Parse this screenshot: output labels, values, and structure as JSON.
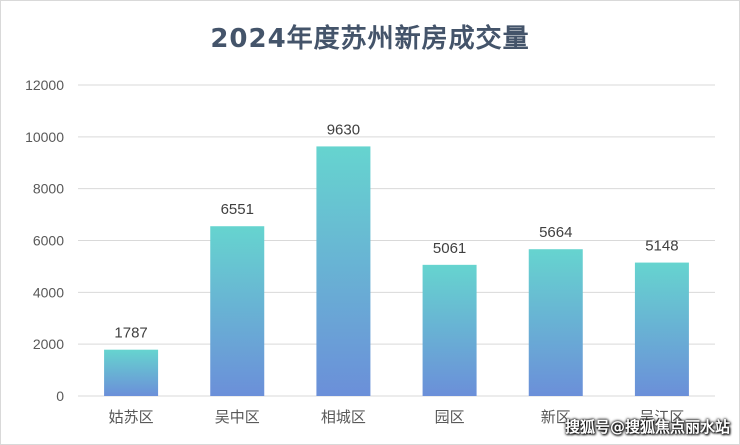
{
  "colors": {
    "bar_top": "#66d4cf",
    "bar_bottom": "#6b8fd9",
    "gridline": "#d9d9d9",
    "title": "#44546a"
  },
  "watermark": "搜狐号@搜狐焦点丽水站",
  "chart_data": {
    "type": "bar",
    "title": "2024年度苏州新房成交量",
    "xlabel": "",
    "ylabel": "",
    "categories": [
      "姑苏区",
      "吴中区",
      "相城区",
      "园区",
      "新区",
      "吴江区"
    ],
    "values": [
      1787,
      6551,
      9630,
      5061,
      5664,
      5148
    ],
    "value_labels": [
      "1787",
      "6551",
      "9630",
      "5061",
      "5664",
      "5148"
    ],
    "ylim": [
      0,
      12000
    ],
    "yticks": [
      0,
      2000,
      4000,
      6000,
      8000,
      10000,
      12000
    ],
    "ytick_labels": [
      "0",
      "2000",
      "4000",
      "6000",
      "8000",
      "10000",
      "12000"
    ],
    "grid": true,
    "legend": "none"
  }
}
